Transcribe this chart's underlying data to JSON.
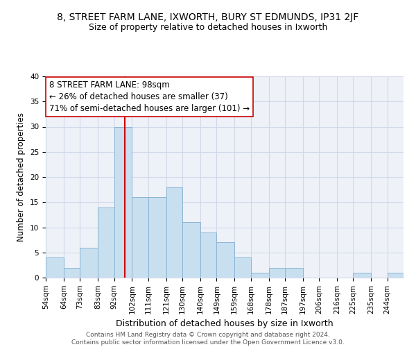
{
  "title": "8, STREET FARM LANE, IXWORTH, BURY ST EDMUNDS, IP31 2JF",
  "subtitle": "Size of property relative to detached houses in Ixworth",
  "xlabel": "Distribution of detached houses by size in Ixworth",
  "ylabel": "Number of detached properties",
  "bar_color": "#c8dff0",
  "bar_edge_color": "#8ab4d4",
  "grid_color": "#d0d8e8",
  "background_color": "#ffffff",
  "plot_bg_color": "#eef2f8",
  "bins": [
    54,
    64,
    73,
    83,
    92,
    102,
    111,
    121,
    130,
    140,
    149,
    159,
    168,
    178,
    187,
    197,
    206,
    216,
    225,
    235,
    244
  ],
  "bin_labels": [
    "54sqm",
    "64sqm",
    "73sqm",
    "83sqm",
    "92sqm",
    "102sqm",
    "111sqm",
    "121sqm",
    "130sqm",
    "140sqm",
    "149sqm",
    "159sqm",
    "168sqm",
    "178sqm",
    "187sqm",
    "197sqm",
    "206sqm",
    "216sqm",
    "225sqm",
    "235sqm",
    "244sqm"
  ],
  "counts": [
    4,
    2,
    6,
    14,
    30,
    16,
    16,
    18,
    11,
    9,
    7,
    4,
    1,
    2,
    2,
    0,
    0,
    0,
    1,
    0,
    1
  ],
  "vline_x": 98,
  "vline_color": "#cc0000",
  "annotation_line1": "8 STREET FARM LANE: 98sqm",
  "annotation_line2": "← 26% of detached houses are smaller (37)",
  "annotation_line3": "71% of semi-detached houses are larger (101) →",
  "annotation_box_edge": "#cc0000",
  "annotation_fontsize": 8.5,
  "title_fontsize": 10,
  "subtitle_fontsize": 9,
  "ylabel_fontsize": 8.5,
  "xlabel_fontsize": 9,
  "tick_fontsize": 7.5,
  "footer_text": "Contains HM Land Registry data © Crown copyright and database right 2024.\nContains public sector information licensed under the Open Government Licence v3.0.",
  "footer_fontsize": 6.5,
  "ylim": [
    0,
    40
  ],
  "yticks": [
    0,
    5,
    10,
    15,
    20,
    25,
    30,
    35,
    40
  ]
}
